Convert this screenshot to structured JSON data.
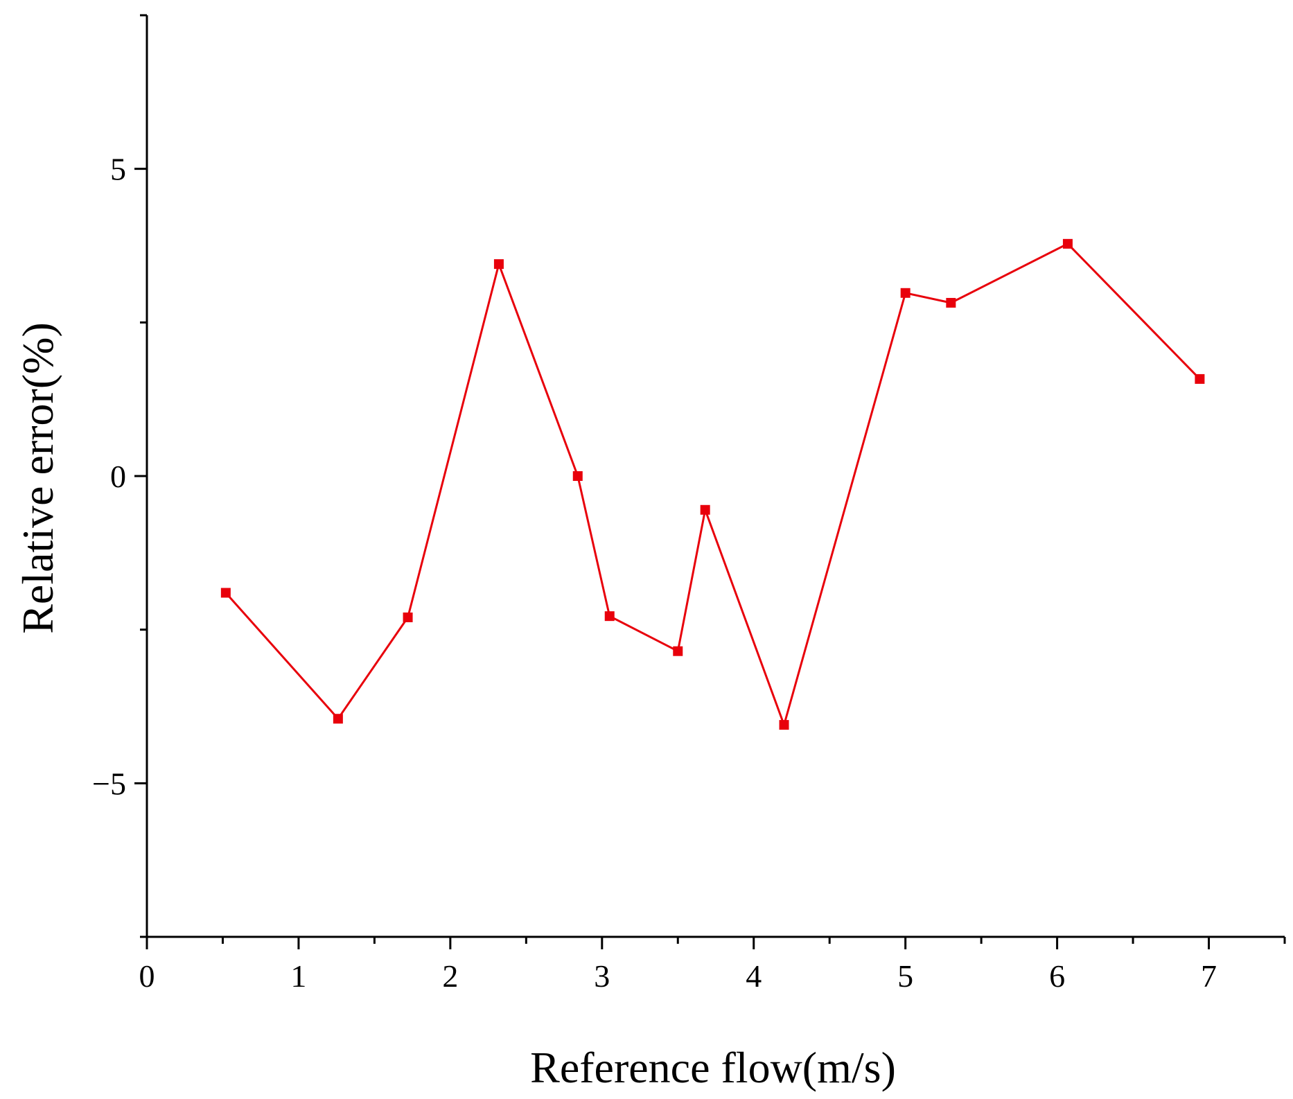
{
  "chart_data": {
    "type": "line",
    "xlabel": "Reference flow(m/s)",
    "ylabel": "Relative error(%)",
    "xlim": [
      0,
      7.5
    ],
    "ylim": [
      -7.5,
      7.5
    ],
    "x_ticks": [
      0,
      1,
      2,
      3,
      4,
      5,
      6,
      7
    ],
    "x_tick_labels": [
      "0",
      "1",
      "2",
      "3",
      "4",
      "5",
      "6",
      "7"
    ],
    "x_minor_ticks": [
      0.5,
      1.5,
      2.5,
      3.5,
      4.5,
      5.5,
      6.5,
      7.5
    ],
    "y_ticks": [
      -5,
      0,
      5
    ],
    "y_tick_labels": [
      "−5",
      "0",
      "5"
    ],
    "y_minor_ticks": [
      -7.5,
      -2.5,
      2.5,
      7.5
    ],
    "grid": false,
    "series": [
      {
        "color": "#e8000b",
        "marker": "square",
        "x": [
          0.52,
          1.26,
          1.72,
          2.32,
          2.84,
          3.05,
          3.5,
          3.68,
          4.2,
          5.0,
          5.3,
          6.07,
          6.94
        ],
        "y": [
          -1.9,
          -3.95,
          -2.3,
          3.45,
          0.0,
          -2.28,
          -2.85,
          -0.55,
          -4.05,
          2.98,
          2.82,
          3.78,
          1.58
        ]
      }
    ]
  }
}
